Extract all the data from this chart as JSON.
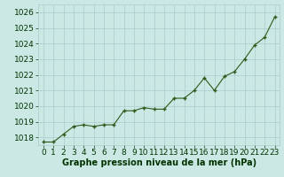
{
  "x": [
    0,
    1,
    2,
    3,
    4,
    5,
    6,
    7,
    8,
    9,
    10,
    11,
    12,
    13,
    14,
    15,
    16,
    17,
    18,
    19,
    20,
    21,
    22,
    23
  ],
  "y": [
    1017.7,
    1017.7,
    1018.2,
    1018.7,
    1018.8,
    1018.7,
    1018.8,
    1018.8,
    1019.7,
    1019.7,
    1019.9,
    1019.8,
    1019.8,
    1020.5,
    1020.5,
    1021.0,
    1021.8,
    1021.0,
    1021.9,
    1022.2,
    1023.0,
    1023.9,
    1024.4,
    1025.7
  ],
  "ylim": [
    1017.5,
    1026.5
  ],
  "yticks": [
    1018,
    1019,
    1020,
    1021,
    1022,
    1023,
    1024,
    1025,
    1026
  ],
  "xticks": [
    0,
    1,
    2,
    3,
    4,
    5,
    6,
    7,
    8,
    9,
    10,
    11,
    12,
    13,
    14,
    15,
    16,
    17,
    18,
    19,
    20,
    21,
    22,
    23
  ],
  "xlabel": "Graphe pression niveau de la mer (hPa)",
  "line_color": "#2d5a1b",
  "marker_color": "#2d5a1b",
  "bg_color": "#cce8e4",
  "grid_color": "#aacccc",
  "xlabel_color": "#003300",
  "tick_label_color": "#003300",
  "xlabel_fontsize": 7.0,
  "tick_fontsize": 6.5,
  "linewidth": 0.8,
  "markersize": 3.0
}
